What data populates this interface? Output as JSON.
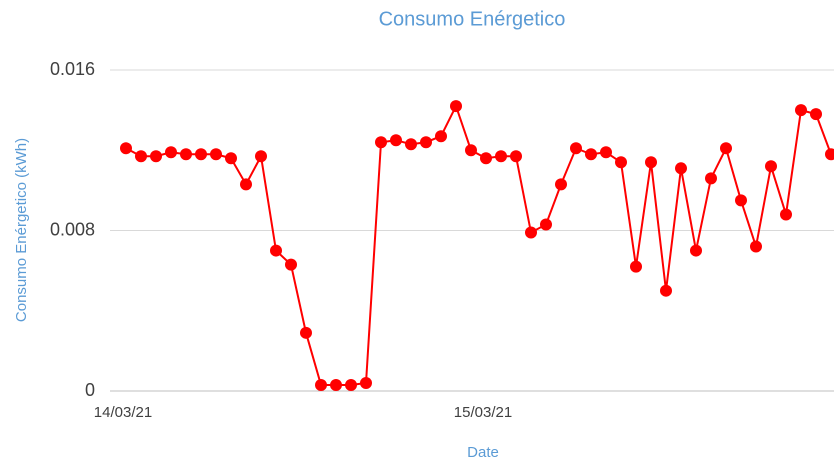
{
  "chart_data": {
    "type": "line",
    "title": "Consumo Enérgetico",
    "x_label": "Date",
    "y_label": "Consumo Enérgetico (kWh)",
    "categories": [
      "14/03/21",
      null,
      null,
      null,
      null,
      null,
      null,
      null,
      null,
      null,
      null,
      null,
      null,
      null,
      null,
      null,
      null,
      null,
      null,
      null,
      null,
      null,
      null,
      null,
      "15/03/21",
      null,
      null,
      null,
      null,
      null,
      null,
      null,
      null,
      null,
      null,
      null,
      null,
      null,
      null,
      null,
      null,
      null,
      null,
      null,
      null,
      null,
      null,
      null
    ],
    "series": [
      {
        "name": "Consumo Enérgetico",
        "color": "#ff0000",
        "values": [
          0.0121,
          0.0117,
          0.0117,
          0.0119,
          0.0118,
          0.0118,
          0.0118,
          0.0116,
          0.0103,
          0.0117,
          0.007,
          0.0063,
          0.0029,
          0.0003,
          0.0003,
          0.0003,
          0.0004,
          0.0124,
          0.0125,
          0.0123,
          0.0124,
          0.0127,
          0.0142,
          0.012,
          0.0116,
          0.0117,
          0.0117,
          0.0079,
          0.0083,
          0.0103,
          0.0121,
          0.0118,
          0.0119,
          0.0114,
          0.0062,
          0.0114,
          0.005,
          0.0111,
          0.007,
          0.0106,
          0.0121,
          0.0095,
          0.0072,
          0.0112,
          0.0088,
          0.014,
          0.0138,
          0.0118
        ]
      }
    ],
    "ylim": [
      0,
      0.016
    ],
    "yticks": [
      0,
      0.008,
      0.016
    ],
    "grid": true
  }
}
